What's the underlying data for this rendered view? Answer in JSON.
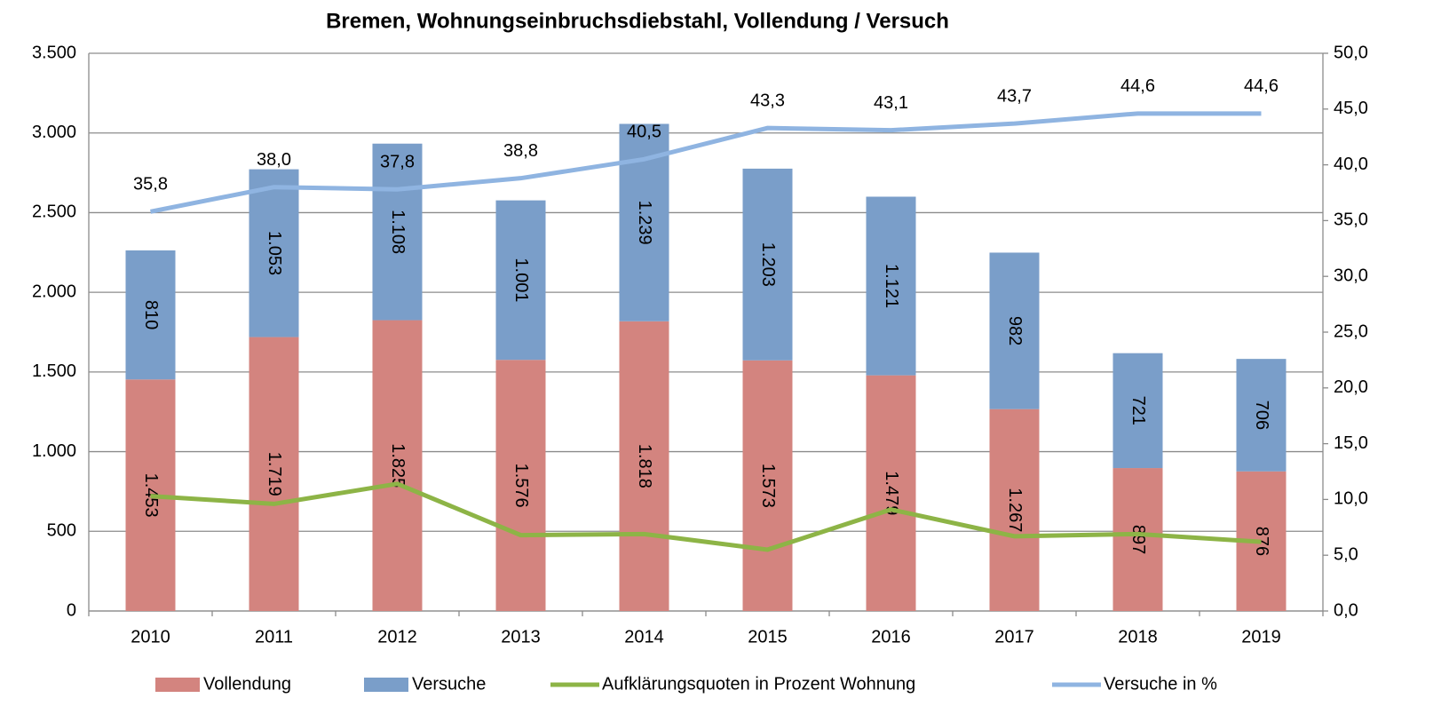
{
  "chart_data": {
    "type": "bar",
    "title": "Bremen, Wohnungseinbruchsdiebstahl, Vollendung / Versuch",
    "categories": [
      "2010",
      "2011",
      "2012",
      "2013",
      "2014",
      "2015",
      "2016",
      "2017",
      "2018",
      "2019"
    ],
    "series": [
      {
        "name": "Vollendung",
        "type": "bar",
        "color": "#d3847f",
        "values": [
          1453,
          1719,
          1825,
          1576,
          1818,
          1573,
          1479,
          1267,
          897,
          876
        ],
        "value_labels": [
          "1.453",
          "1.719",
          "1.825",
          "1.576",
          "1.818",
          "1.573",
          "1.479",
          "1.267",
          "897",
          "876"
        ]
      },
      {
        "name": "Versuche",
        "type": "bar",
        "color": "#7a9ec9",
        "values": [
          810,
          1053,
          1108,
          1001,
          1239,
          1203,
          1121,
          982,
          721,
          706
        ],
        "value_labels": [
          "810",
          "1.053",
          "1.108",
          "1.001",
          "1.239",
          "1.203",
          "1.121",
          "982",
          "721",
          "706"
        ]
      },
      {
        "name": "Aufklärungsquoten in Prozent Wohnung",
        "type": "line",
        "axis": "y2",
        "color": "#8db446",
        "values": [
          10.3,
          9.6,
          11.4,
          6.8,
          6.9,
          5.5,
          9.1,
          6.7,
          6.9,
          6.2
        ]
      },
      {
        "name": "Versuche in %",
        "type": "line",
        "axis": "y2",
        "color": "#8fb4e1",
        "values": [
          35.8,
          38.0,
          37.8,
          38.8,
          40.5,
          43.3,
          43.1,
          43.7,
          44.6,
          44.6
        ],
        "value_labels": [
          "35,8",
          "38,0",
          "37,8",
          "38,8",
          "40,5",
          "43,3",
          "43,1",
          "43,7",
          "44,6",
          "44,6"
        ]
      }
    ],
    "stacked": true,
    "ylim": [
      0,
      3500
    ],
    "yticks": [
      0,
      500,
      {
        "value": 1000,
        "label": "1.000"
      },
      {
        "value": 1500,
        "label": "1.500"
      },
      {
        "value": 2000,
        "label": "2.000"
      },
      {
        "value": 2500,
        "label": "2.500"
      },
      {
        "value": 3000,
        "label": "3.000"
      },
      {
        "value": 3500,
        "label": "3.500"
      }
    ],
    "y2lim": [
      0,
      50
    ],
    "y2ticks": [
      {
        "value": 0,
        "label": "0,0"
      },
      {
        "value": 5,
        "label": "5,0"
      },
      {
        "value": 10,
        "label": "10,0"
      },
      {
        "value": 15,
        "label": "15,0"
      },
      {
        "value": 20,
        "label": "20,0"
      },
      {
        "value": 25,
        "label": "25,0"
      },
      {
        "value": 30,
        "label": "30,0"
      },
      {
        "value": 35,
        "label": "35,0"
      },
      {
        "value": 40,
        "label": "40,0"
      },
      {
        "value": 45,
        "label": "45,0"
      },
      {
        "value": 50,
        "label": "50,0"
      }
    ],
    "grid": true,
    "legend": "bottom"
  }
}
